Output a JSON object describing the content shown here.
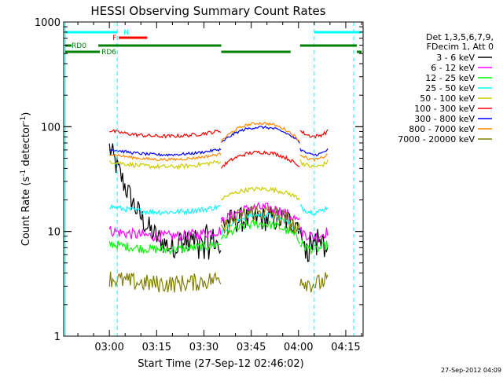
{
  "chart_data": {
    "type": "line",
    "title": "HESSI Observing Summary Count Rates",
    "xlabel": "Start Time (27-Sep-12 02:46:02)",
    "ylabel_main": "Count Rate (s",
    "ylabel_sup1": "-1",
    "ylabel_mid": " detector",
    "ylabel_sup2": "-1",
    "ylabel_end": ")",
    "y_scale": "log",
    "ylim": [
      1,
      1000
    ],
    "xlim_minutes": [
      -14.5,
      80.5
    ],
    "x_unit": "minutes after 03:00 UT",
    "x_ticks": [
      {
        "m": 0,
        "label": "03:00"
      },
      {
        "m": 15,
        "label": "03:15"
      },
      {
        "m": 30,
        "label": "03:30"
      },
      {
        "m": 45,
        "label": "03:45"
      },
      {
        "m": 60,
        "label": "04:00"
      },
      {
        "m": 75,
        "label": "04:15"
      }
    ],
    "y_ticks": [
      {
        "v": 1,
        "label": "1"
      },
      {
        "v": 10,
        "label": "10"
      },
      {
        "v": 100,
        "label": "100"
      },
      {
        "v": 1000,
        "label": "1000"
      }
    ],
    "legend": {
      "placement": "right",
      "header": [
        "Det 1,3,5,6,7,9,",
        "FDecim 1, Att 0"
      ]
    },
    "series": [
      {
        "name": "3 - 6 keV",
        "color": "#000000",
        "day_level": 12,
        "base": 10,
        "peak": 1.1,
        "noise": 0.28
      },
      {
        "name": "6 - 12 keV",
        "color": "#ff00ff",
        "day_level": 10,
        "base": 10,
        "peak": 1.4,
        "noise": 0.12
      },
      {
        "name": "12 - 25 keV",
        "color": "#00ff00",
        "day_level": 7.5,
        "base": 6.8,
        "peak": 1.45,
        "noise": 0.1
      },
      {
        "name": "25 - 50 keV",
        "color": "#00ffff",
        "day_level": 17,
        "base": 8,
        "peak": 1.5,
        "noise": 0.06
      },
      {
        "name": "50 - 100 keV",
        "color": "#cccc00",
        "day_level": 46,
        "base": 17,
        "peak": 1.25,
        "noise": 0.05
      },
      {
        "name": "100 - 300 keV",
        "color": "#ff0000",
        "day_level": 90,
        "base": 34,
        "peak": 1.4,
        "noise": 0.04
      },
      {
        "name": "300 - 800 keV",
        "color": "#0000ff",
        "day_level": 60,
        "base": 58,
        "peak": 1.42,
        "noise": 0.03
      },
      {
        "name": "800 - 7000 keV",
        "color": "#ff8800",
        "day_level": 54,
        "base": 60,
        "peak": 1.5,
        "noise": 0.03
      },
      {
        "name": "7000 - 20000 keV",
        "color": "#808000",
        "day_level": 3.5,
        "base": 8,
        "peak": 1.6,
        "noise": 0.2
      }
    ],
    "day_intervals_minutes": [
      [
        0,
        35.5
      ],
      [
        60.5,
        69.5
      ]
    ],
    "night_interval_minutes": [
      35.5,
      60.5
    ],
    "saa_lines_minutes": [
      -14,
      2.5,
      65,
      77.5
    ],
    "flags": [
      {
        "label": "N",
        "color": "#00ffff",
        "segments": [
          [
            -14,
            2.5
          ],
          [
            65,
            80
          ]
        ]
      },
      {
        "label": "F",
        "color": "#ff0000",
        "segments": [
          [
            3,
            12
          ]
        ]
      },
      {
        "label": "RD0",
        "color": "#008000",
        "segments": [
          [
            -14,
            -12
          ],
          [
            -3.5,
            35.5
          ],
          [
            60.5,
            78.5
          ]
        ]
      },
      {
        "label": "RD6",
        "color": "#008000",
        "segments": [
          [
            -14,
            -3
          ],
          [
            35.5,
            57.5
          ],
          [
            78.5,
            80
          ]
        ]
      }
    ],
    "timestamp": "27-Sep-2012 04:09"
  }
}
